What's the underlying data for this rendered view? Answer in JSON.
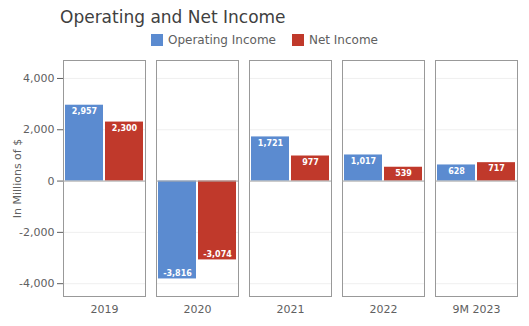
{
  "chart_data": {
    "type": "bar",
    "title": "Operating and Net Income",
    "ylabel": "In Millions of $",
    "categories": [
      "2019",
      "2020",
      "2021",
      "2022",
      "9M 2023"
    ],
    "series": [
      {
        "name": "Operating Income",
        "color": "#5B8BD0",
        "values": [
          2957,
          -3816,
          1721,
          1017,
          628
        ],
        "value_labels": [
          "2,957",
          "-3,816",
          "1,721",
          "1,017",
          "628"
        ]
      },
      {
        "name": "Net Income",
        "color": "#C0392B",
        "values": [
          2300,
          -3074,
          977,
          539,
          717
        ],
        "value_labels": [
          "2,300",
          "-3,074",
          "977",
          "539",
          "717"
        ]
      }
    ],
    "ylim": [
      -4500,
      4700
    ],
    "yticks": [
      {
        "value": -4000,
        "label": "-4,000"
      },
      {
        "value": -2000,
        "label": "-2,000"
      },
      0,
      {
        "value": 2000,
        "label": "2,000"
      },
      {
        "value": 4000,
        "label": "4,000"
      }
    ],
    "grid": true,
    "legend": "top",
    "data_labels": true
  }
}
